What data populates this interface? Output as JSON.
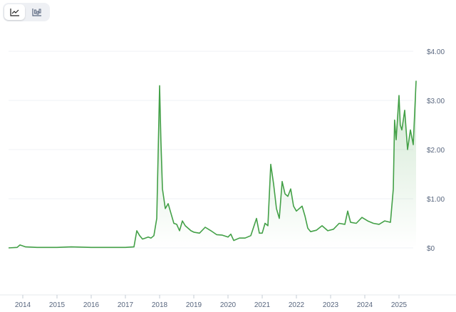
{
  "toolbar": {
    "buttons": [
      {
        "icon": "line-chart-icon",
        "active": true
      },
      {
        "icon": "candlestick-chart-icon",
        "active": false
      }
    ]
  },
  "colors": {
    "line": "#43a047",
    "fill_top": "#43a047",
    "grid": "#eff2f5",
    "axis_text": "#58667e"
  },
  "chart_data": {
    "type": "area",
    "title": "",
    "xlabel": "",
    "ylabel": "",
    "x_ticks": [
      "2014",
      "2015",
      "2016",
      "2017",
      "2018",
      "2019",
      "2020",
      "2021",
      "2022",
      "2023",
      "2024",
      "2025"
    ],
    "y_ticks": [
      "$0",
      "$1.00",
      "$2.00",
      "$3.00",
      "$4.00"
    ],
    "y_tick_values": [
      0,
      1,
      2,
      3,
      4
    ],
    "xlim": [
      "2013-08",
      "2025-08"
    ],
    "ylim": [
      0,
      4
    ],
    "grid": true,
    "y_axis_side": "right",
    "series": [
      {
        "points": [
          [
            "2013-08",
            0.0
          ],
          [
            "2013-11",
            0.01
          ],
          [
            "2013-12",
            0.06
          ],
          [
            "2014-02",
            0.02
          ],
          [
            "2014-06",
            0.01
          ],
          [
            "2015-01",
            0.01
          ],
          [
            "2015-06",
            0.02
          ],
          [
            "2016-01",
            0.01
          ],
          [
            "2016-06",
            0.01
          ],
          [
            "2017-01",
            0.01
          ],
          [
            "2017-04",
            0.02
          ],
          [
            "2017-05",
            0.35
          ],
          [
            "2017-06",
            0.25
          ],
          [
            "2017-07",
            0.18
          ],
          [
            "2017-08",
            0.2
          ],
          [
            "2017-09",
            0.22
          ],
          [
            "2017-10",
            0.2
          ],
          [
            "2017-11",
            0.25
          ],
          [
            "2017-12",
            0.6
          ],
          [
            "2018-01",
            3.3
          ],
          [
            "2018-01-15",
            2.2
          ],
          [
            "2018-02",
            1.2
          ],
          [
            "2018-03",
            0.8
          ],
          [
            "2018-04",
            0.9
          ],
          [
            "2018-05",
            0.7
          ],
          [
            "2018-06",
            0.5
          ],
          [
            "2018-07",
            0.48
          ],
          [
            "2018-08",
            0.35
          ],
          [
            "2018-09",
            0.55
          ],
          [
            "2018-10",
            0.45
          ],
          [
            "2018-11",
            0.4
          ],
          [
            "2018-12",
            0.35
          ],
          [
            "2019-01",
            0.32
          ],
          [
            "2019-03",
            0.3
          ],
          [
            "2019-05",
            0.42
          ],
          [
            "2019-07",
            0.35
          ],
          [
            "2019-09",
            0.27
          ],
          [
            "2019-11",
            0.26
          ],
          [
            "2020-01",
            0.22
          ],
          [
            "2020-02",
            0.28
          ],
          [
            "2020-03",
            0.15
          ],
          [
            "2020-05",
            0.2
          ],
          [
            "2020-07",
            0.2
          ],
          [
            "2020-09",
            0.25
          ],
          [
            "2020-11",
            0.6
          ],
          [
            "2020-12",
            0.3
          ],
          [
            "2021-01",
            0.3
          ],
          [
            "2021-02",
            0.5
          ],
          [
            "2021-03",
            0.45
          ],
          [
            "2021-04",
            1.7
          ],
          [
            "2021-05",
            1.3
          ],
          [
            "2021-06",
            0.8
          ],
          [
            "2021-07",
            0.6
          ],
          [
            "2021-08",
            1.35
          ],
          [
            "2021-09",
            1.1
          ],
          [
            "2021-10",
            1.05
          ],
          [
            "2021-11",
            1.2
          ],
          [
            "2021-12",
            0.85
          ],
          [
            "2022-01",
            0.75
          ],
          [
            "2022-02",
            0.8
          ],
          [
            "2022-03",
            0.85
          ],
          [
            "2022-04",
            0.65
          ],
          [
            "2022-05",
            0.4
          ],
          [
            "2022-06",
            0.33
          ],
          [
            "2022-08",
            0.36
          ],
          [
            "2022-10",
            0.45
          ],
          [
            "2022-12",
            0.35
          ],
          [
            "2023-02",
            0.38
          ],
          [
            "2023-04",
            0.5
          ],
          [
            "2023-06",
            0.48
          ],
          [
            "2023-07",
            0.75
          ],
          [
            "2023-08",
            0.52
          ],
          [
            "2023-10",
            0.5
          ],
          [
            "2023-12",
            0.62
          ],
          [
            "2024-02",
            0.55
          ],
          [
            "2024-04",
            0.5
          ],
          [
            "2024-06",
            0.48
          ],
          [
            "2024-08",
            0.55
          ],
          [
            "2024-10",
            0.52
          ],
          [
            "2024-11",
            1.2
          ],
          [
            "2024-11-15",
            2.6
          ],
          [
            "2024-12",
            2.2
          ],
          [
            "2025-01",
            3.1
          ],
          [
            "2025-01-15",
            2.5
          ],
          [
            "2025-02",
            2.4
          ],
          [
            "2025-03",
            2.8
          ],
          [
            "2025-04",
            2.0
          ],
          [
            "2025-05",
            2.4
          ],
          [
            "2025-06",
            2.1
          ],
          [
            "2025-07",
            3.4
          ]
        ]
      }
    ]
  }
}
